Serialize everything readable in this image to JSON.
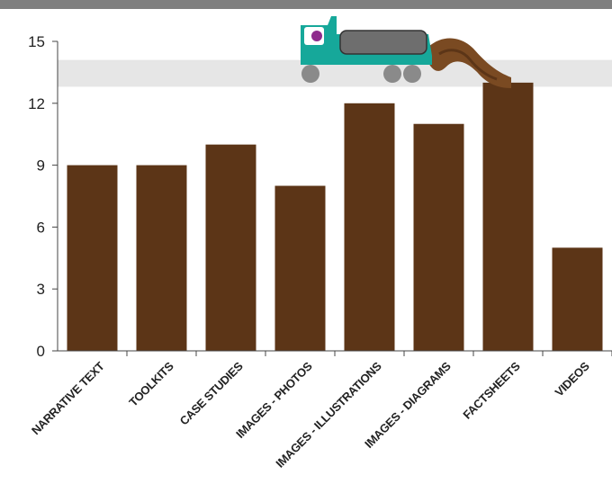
{
  "colors": {
    "bar": "#5c3517",
    "top_bar": "#7f7f7f",
    "band": "#e6e6e6",
    "axis": "#444444",
    "truck_body": "#16a89a",
    "truck_tank": "#6e6e6e",
    "wheel": "#8a8a8a",
    "driver": "#8e2b8c",
    "sludge": "#7a4a22"
  },
  "chart_data": {
    "type": "bar",
    "categories": [
      "NARRATIVE TEXT",
      "TOOLKITS",
      "CASE STUDIES",
      "IMAGES - PHOTOS",
      "IMAGES - ILLUSTRATIONS",
      "IMAGES - DIAGRAMS",
      "FACTSHEETS",
      "VIDEOS"
    ],
    "values": [
      9,
      9,
      10,
      8,
      12,
      11,
      13,
      5
    ],
    "yticks": [
      "0",
      "3",
      "6",
      "9",
      "12",
      "15"
    ],
    "ylim": [
      0,
      15
    ],
    "highlight_band": [
      12.8,
      14.1
    ],
    "grid": false,
    "legend": "none",
    "decoration": "truck-icon"
  }
}
